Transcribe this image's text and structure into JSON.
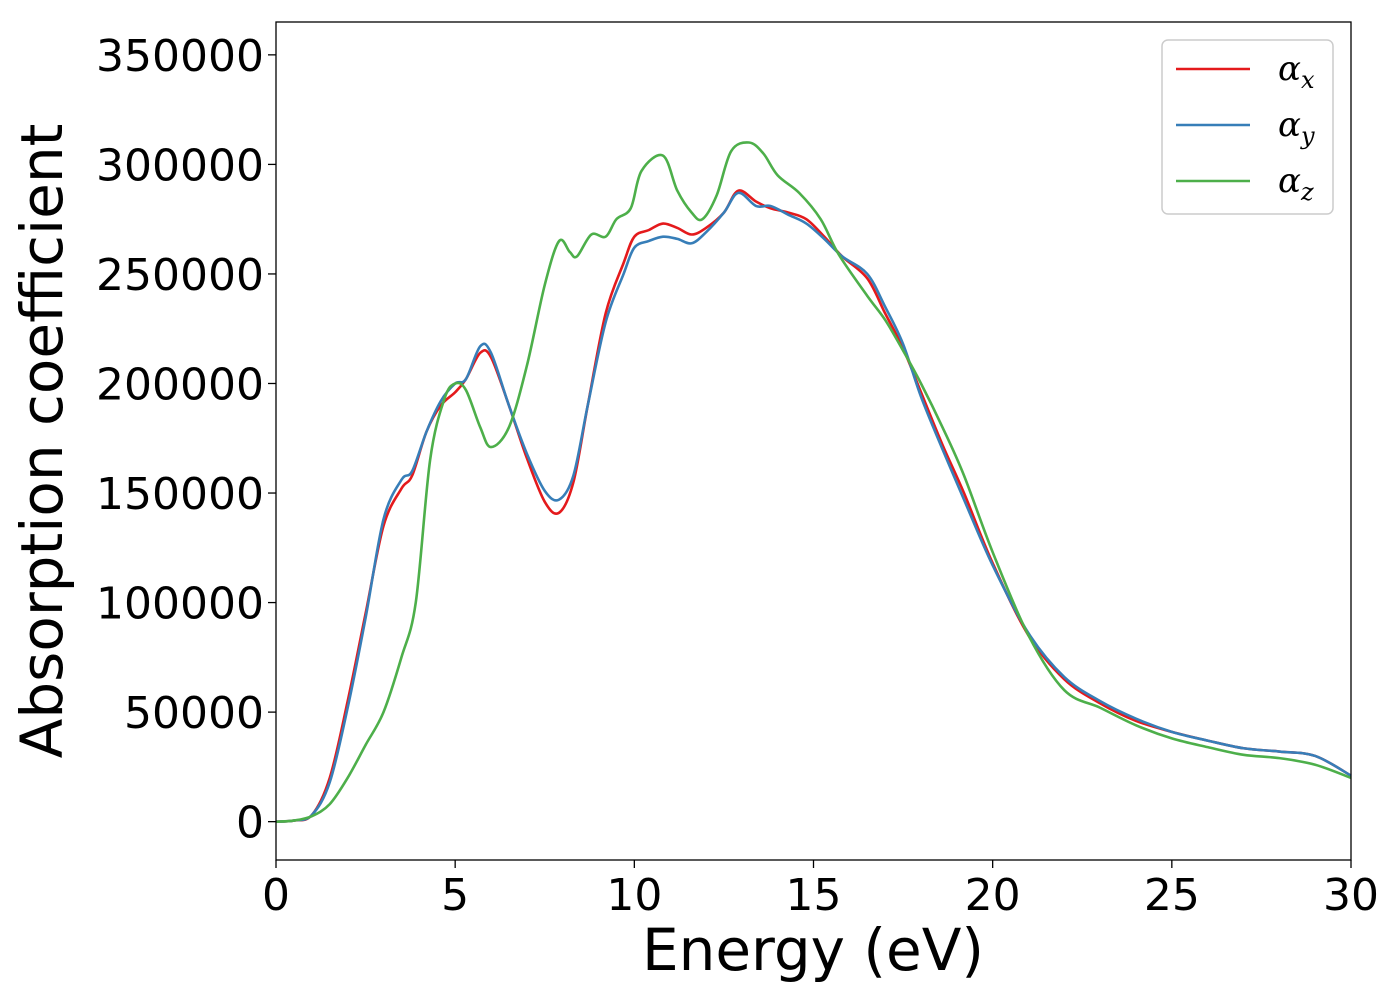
{
  "chart_data": {
    "type": "line",
    "title": "",
    "xlabel": "Energy (eV)",
    "ylabel": "Absorption coefficient",
    "xlim": [
      0,
      30
    ],
    "ylim": [
      -17500,
      365000
    ],
    "xticks": [
      0,
      5,
      10,
      15,
      20,
      25,
      30
    ],
    "yticks": [
      0,
      50000,
      100000,
      150000,
      200000,
      250000,
      300000,
      350000
    ],
    "grid": false,
    "legend_position": "top-right",
    "series": [
      {
        "name": "α_x",
        "symbol": "α",
        "subscript": "x",
        "color": "#e41a1c",
        "points": [
          [
            0,
            0
          ],
          [
            0.5,
            500
          ],
          [
            1.0,
            3000
          ],
          [
            1.5,
            20000
          ],
          [
            2.0,
            55000
          ],
          [
            2.5,
            95000
          ],
          [
            3.0,
            135000
          ],
          [
            3.5,
            152000
          ],
          [
            3.8,
            158000
          ],
          [
            4.2,
            178000
          ],
          [
            4.6,
            190000
          ],
          [
            5.0,
            196000
          ],
          [
            5.3,
            202000
          ],
          [
            5.7,
            214000
          ],
          [
            6.0,
            212000
          ],
          [
            6.5,
            190000
          ],
          [
            7.0,
            166000
          ],
          [
            7.5,
            146000
          ],
          [
            7.9,
            141000
          ],
          [
            8.3,
            155000
          ],
          [
            8.7,
            190000
          ],
          [
            9.2,
            232000
          ],
          [
            9.7,
            255000
          ],
          [
            10.0,
            267000
          ],
          [
            10.4,
            270000
          ],
          [
            10.8,
            273000
          ],
          [
            11.2,
            271000
          ],
          [
            11.6,
            268000
          ],
          [
            12.0,
            271000
          ],
          [
            12.5,
            278000
          ],
          [
            12.9,
            288000
          ],
          [
            13.4,
            283000
          ],
          [
            13.8,
            280000
          ],
          [
            14.3,
            278000
          ],
          [
            14.8,
            275000
          ],
          [
            15.3,
            267000
          ],
          [
            15.8,
            258000
          ],
          [
            16.5,
            248000
          ],
          [
            17.0,
            232000
          ],
          [
            17.5,
            216000
          ],
          [
            18.0,
            196000
          ],
          [
            18.6,
            172000
          ],
          [
            19.2,
            150000
          ],
          [
            20.0,
            118000
          ],
          [
            21.0,
            85000
          ],
          [
            22.0,
            65000
          ],
          [
            23.0,
            54000
          ],
          [
            24.0,
            46000
          ],
          [
            25.0,
            41000
          ],
          [
            26.0,
            37000
          ],
          [
            27.0,
            33500
          ],
          [
            28.0,
            32000
          ],
          [
            29.0,
            30000
          ],
          [
            30.0,
            21000
          ]
        ]
      },
      {
        "name": "α_y",
        "symbol": "α",
        "subscript": "y",
        "color": "#377eb8",
        "points": [
          [
            0,
            0
          ],
          [
            0.5,
            500
          ],
          [
            1.0,
            3000
          ],
          [
            1.5,
            18000
          ],
          [
            2.0,
            52000
          ],
          [
            2.5,
            93000
          ],
          [
            3.0,
            138000
          ],
          [
            3.5,
            156000
          ],
          [
            3.8,
            160000
          ],
          [
            4.2,
            178000
          ],
          [
            4.6,
            192000
          ],
          [
            5.0,
            200000
          ],
          [
            5.3,
            202000
          ],
          [
            5.7,
            217000
          ],
          [
            6.0,
            214000
          ],
          [
            6.5,
            190000
          ],
          [
            7.0,
            168000
          ],
          [
            7.5,
            151000
          ],
          [
            7.9,
            147000
          ],
          [
            8.3,
            158000
          ],
          [
            8.7,
            190000
          ],
          [
            9.2,
            228000
          ],
          [
            9.7,
            250000
          ],
          [
            10.0,
            262000
          ],
          [
            10.4,
            265000
          ],
          [
            10.8,
            267000
          ],
          [
            11.2,
            266000
          ],
          [
            11.6,
            264000
          ],
          [
            12.0,
            269000
          ],
          [
            12.5,
            278000
          ],
          [
            12.9,
            287000
          ],
          [
            13.4,
            281000
          ],
          [
            13.8,
            281000
          ],
          [
            14.3,
            277000
          ],
          [
            14.8,
            273000
          ],
          [
            15.3,
            266000
          ],
          [
            15.8,
            258000
          ],
          [
            16.5,
            250000
          ],
          [
            17.0,
            235000
          ],
          [
            17.5,
            218000
          ],
          [
            18.0,
            194000
          ],
          [
            18.6,
            170000
          ],
          [
            19.2,
            147000
          ],
          [
            20.0,
            117000
          ],
          [
            21.0,
            86000
          ],
          [
            22.0,
            66000
          ],
          [
            23.0,
            55000
          ],
          [
            24.0,
            47000
          ],
          [
            25.0,
            41000
          ],
          [
            26.0,
            37000
          ],
          [
            27.0,
            33500
          ],
          [
            28.0,
            32000
          ],
          [
            29.0,
            30000
          ],
          [
            30.0,
            21000
          ]
        ]
      },
      {
        "name": "α_z",
        "symbol": "α",
        "subscript": "z",
        "color": "#4daf4a",
        "points": [
          [
            0,
            0
          ],
          [
            0.5,
            500
          ],
          [
            1.0,
            2500
          ],
          [
            1.5,
            8000
          ],
          [
            2.0,
            20000
          ],
          [
            2.5,
            35000
          ],
          [
            3.0,
            50000
          ],
          [
            3.5,
            75000
          ],
          [
            3.9,
            100000
          ],
          [
            4.3,
            165000
          ],
          [
            4.7,
            193000
          ],
          [
            5.0,
            200000
          ],
          [
            5.3,
            197000
          ],
          [
            5.7,
            180000
          ],
          [
            6.0,
            171000
          ],
          [
            6.5,
            180000
          ],
          [
            7.0,
            208000
          ],
          [
            7.5,
            245000
          ],
          [
            7.9,
            265000
          ],
          [
            8.2,
            260000
          ],
          [
            8.4,
            258000
          ],
          [
            8.8,
            268000
          ],
          [
            9.2,
            267000
          ],
          [
            9.5,
            275000
          ],
          [
            9.9,
            280000
          ],
          [
            10.2,
            297000
          ],
          [
            10.8,
            304000
          ],
          [
            11.2,
            288000
          ],
          [
            11.6,
            278000
          ],
          [
            11.9,
            275000
          ],
          [
            12.3,
            286000
          ],
          [
            12.7,
            306000
          ],
          [
            13.2,
            310000
          ],
          [
            13.6,
            305000
          ],
          [
            14.0,
            295000
          ],
          [
            14.6,
            287000
          ],
          [
            15.2,
            275000
          ],
          [
            15.7,
            259000
          ],
          [
            16.5,
            240000
          ],
          [
            17.0,
            229000
          ],
          [
            17.5,
            215000
          ],
          [
            18.0,
            200000
          ],
          [
            18.6,
            180000
          ],
          [
            19.2,
            158000
          ],
          [
            20.0,
            123000
          ],
          [
            21.0,
            85000
          ],
          [
            22.0,
            60000
          ],
          [
            23.0,
            52000
          ],
          [
            24.0,
            44000
          ],
          [
            25.0,
            38000
          ],
          [
            26.0,
            34000
          ],
          [
            27.0,
            30500
          ],
          [
            28.0,
            29000
          ],
          [
            29.0,
            26000
          ],
          [
            30.0,
            20000
          ]
        ]
      }
    ]
  }
}
